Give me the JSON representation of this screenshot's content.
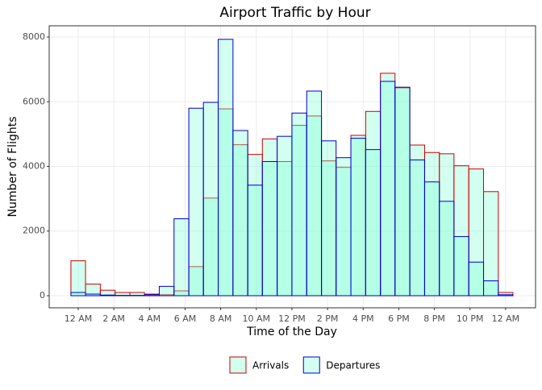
{
  "chart_data": {
    "type": "histogram",
    "title": "Airport Traffic by Hour",
    "x_label": "Time of the Day",
    "y_label": "Number of Flights",
    "bins": [
      -0.41,
      0.41,
      1.24,
      2.07,
      2.9,
      3.72,
      4.55,
      5.38,
      6.21,
      7.03,
      7.86,
      8.69,
      9.52,
      10.34,
      11.17,
      12.0,
      12.83,
      13.66,
      14.48,
      15.31,
      16.14,
      16.97,
      17.79,
      18.62,
      19.45,
      20.28,
      21.1,
      21.93,
      22.76,
      23.59,
      24.41
    ],
    "fill": "#7fffd4",
    "series": [
      {
        "name": "Arrivals",
        "color": "#cc0000",
        "values": [
          1080,
          360,
          170,
          100,
          100,
          50,
          30,
          150,
          900,
          3020,
          5780,
          4670,
          4370,
          4850,
          4150,
          5270,
          5560,
          4170,
          3970,
          4960,
          5700,
          6880,
          6430,
          4660,
          4430,
          4390,
          4020,
          3920,
          3220,
          100
        ]
      },
      {
        "name": "Departures",
        "color": "#0000cc",
        "values": [
          100,
          50,
          20,
          10,
          10,
          30,
          290,
          2380,
          5800,
          5980,
          7930,
          5110,
          3420,
          4150,
          4930,
          5650,
          6330,
          4790,
          4270,
          4870,
          4520,
          6630,
          6450,
          4200,
          3520,
          2920,
          1830,
          1040,
          460,
          30
        ]
      }
    ],
    "xlim": [
      -1.63,
      25.68
    ],
    "ylim": [
      -374,
      8349
    ],
    "xticks": [
      {
        "value": 0,
        "label": "12 AM"
      },
      {
        "value": 2,
        "label": "2 AM"
      },
      {
        "value": 4,
        "label": "4 AM"
      },
      {
        "value": 6,
        "label": "6 AM"
      },
      {
        "value": 8,
        "label": "8 AM"
      },
      {
        "value": 10,
        "label": "10 AM"
      },
      {
        "value": 12,
        "label": "12 PM"
      },
      {
        "value": 14,
        "label": "2 PM"
      },
      {
        "value": 16,
        "label": "4 PM"
      },
      {
        "value": 18,
        "label": "6 PM"
      },
      {
        "value": 20,
        "label": "8 PM"
      },
      {
        "value": 22,
        "label": "10 PM"
      },
      {
        "value": 24,
        "label": "12 AM"
      }
    ],
    "yticks": [
      0,
      2000,
      4000,
      6000,
      8000
    ],
    "grid": true,
    "legend": "bottom"
  }
}
